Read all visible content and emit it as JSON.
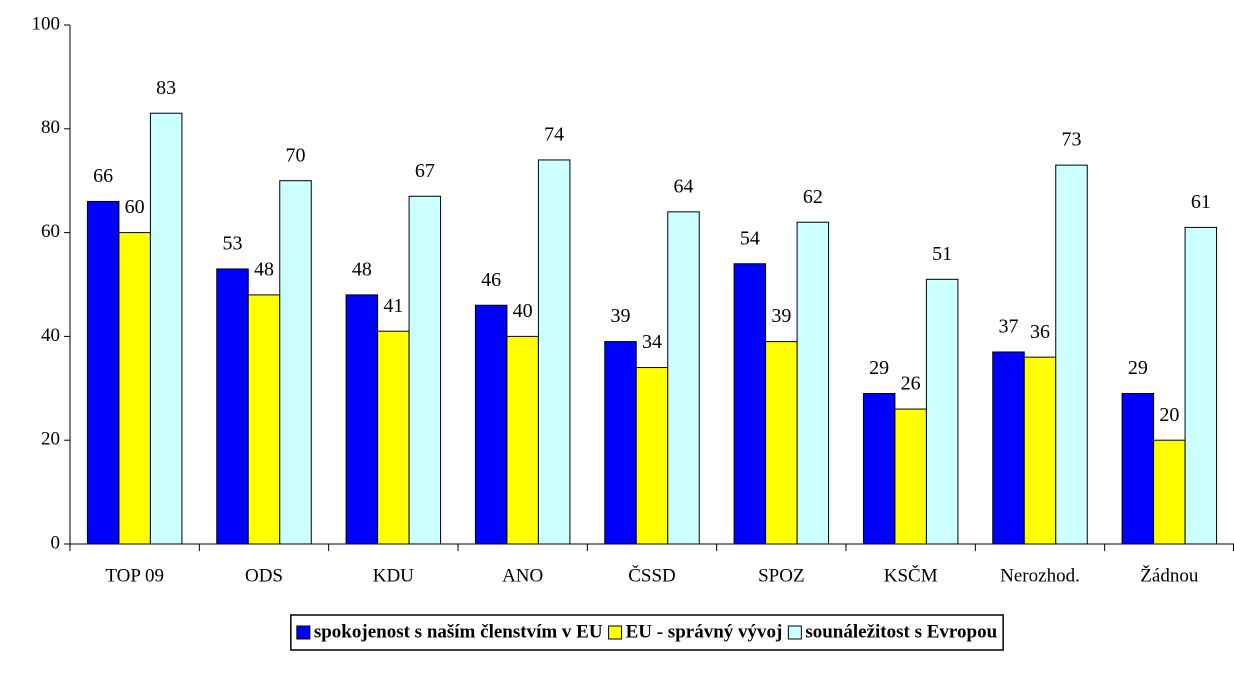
{
  "chart_data": {
    "type": "bar",
    "categories": [
      "TOP 09",
      "ODS",
      "KDU",
      "ANO",
      "ČSSD",
      "SPOZ",
      "KSČM",
      "Nerozhod.",
      "Žádnou"
    ],
    "series": [
      {
        "name": "spokojenost s naším členstvím v EU",
        "color": "#0000ff",
        "values": [
          66,
          53,
          48,
          46,
          39,
          54,
          29,
          37,
          29
        ]
      },
      {
        "name": "EU - správný vývoj",
        "color": "#ffff00",
        "values": [
          60,
          48,
          41,
          40,
          34,
          39,
          26,
          36,
          20
        ]
      },
      {
        "name": "sounáležitost s Evropou",
        "color": "#ccffff",
        "values": [
          83,
          70,
          67,
          74,
          64,
          62,
          51,
          73,
          61
        ]
      }
    ],
    "ylim": [
      0,
      100
    ],
    "yticks": [
      0,
      20,
      40,
      60,
      80,
      100
    ],
    "grid": false,
    "legend": "bottom"
  }
}
